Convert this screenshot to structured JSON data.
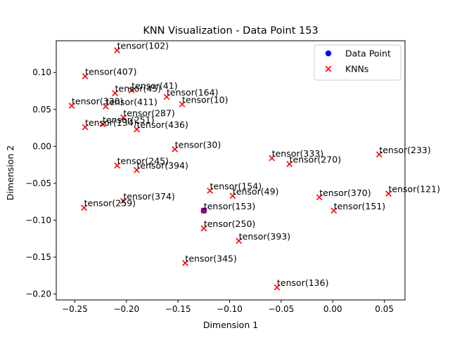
{
  "chart_data": {
    "type": "scatter",
    "title": "KNN Visualization - Data Point 153",
    "xlabel": "Dimension 1",
    "ylabel": "Dimension 2",
    "xlim": [
      -0.268,
      0.07
    ],
    "ylim": [
      -0.208,
      0.143
    ],
    "xticks": [
      -0.25,
      -0.2,
      -0.15,
      -0.1,
      -0.05,
      0.0,
      0.05
    ],
    "xtick_labels": [
      "−0.25",
      "−0.20",
      "−0.15",
      "−0.10",
      "−0.05",
      "0.00",
      "0.05"
    ],
    "yticks": [
      -0.2,
      -0.15,
      -0.1,
      -0.05,
      0.0,
      0.05,
      0.1
    ],
    "ytick_labels": [
      "−0.20",
      "−0.15",
      "−0.10",
      "−0.05",
      "0.00",
      "0.05",
      "0.10"
    ],
    "grid": false,
    "legend_position": "top-right",
    "colors": {
      "data_point": "#0000ff",
      "knn": "#ff0000"
    },
    "series": [
      {
        "name": "Data Point",
        "marker": "circle",
        "points": [
          {
            "x": -0.125,
            "y": -0.087,
            "label": "tensor(153)"
          }
        ]
      },
      {
        "name": "KNNs",
        "marker": "x",
        "points": [
          {
            "x": -0.209,
            "y": 0.13,
            "label": "tensor(102)"
          },
          {
            "x": -0.24,
            "y": 0.095,
            "label": "tensor(407)"
          },
          {
            "x": -0.195,
            "y": 0.076,
            "label": "tensor(41)"
          },
          {
            "x": -0.211,
            "y": 0.072,
            "label": "tensor(45)"
          },
          {
            "x": -0.161,
            "y": 0.067,
            "label": "tensor(164)"
          },
          {
            "x": -0.146,
            "y": 0.057,
            "label": "tensor(10)"
          },
          {
            "x": -0.253,
            "y": 0.055,
            "label": "tensor(330)"
          },
          {
            "x": -0.22,
            "y": 0.054,
            "label": "tensor(411)"
          },
          {
            "x": -0.203,
            "y": 0.039,
            "label": "tensor(287)"
          },
          {
            "x": -0.223,
            "y": 0.03,
            "label": "tensor(251)"
          },
          {
            "x": -0.24,
            "y": 0.026,
            "label": "tensor(134)"
          },
          {
            "x": -0.19,
            "y": 0.023,
            "label": "tensor(436)"
          },
          {
            "x": -0.153,
            "y": -0.004,
            "label": "tensor(30)"
          },
          {
            "x": -0.209,
            "y": -0.026,
            "label": "tensor(245)"
          },
          {
            "x": -0.19,
            "y": -0.032,
            "label": "tensor(394)"
          },
          {
            "x": -0.059,
            "y": -0.016,
            "label": "tensor(333)"
          },
          {
            "x": -0.042,
            "y": -0.024,
            "label": "tensor(270)"
          },
          {
            "x": 0.045,
            "y": -0.011,
            "label": "tensor(233)"
          },
          {
            "x": -0.119,
            "y": -0.06,
            "label": "tensor(154)"
          },
          {
            "x": -0.097,
            "y": -0.067,
            "label": "tensor(49)"
          },
          {
            "x": -0.013,
            "y": -0.069,
            "label": "tensor(370)"
          },
          {
            "x": 0.054,
            "y": -0.064,
            "label": "tensor(121)"
          },
          {
            "x": -0.203,
            "y": -0.074,
            "label": "tensor(374)"
          },
          {
            "x": -0.241,
            "y": -0.083,
            "label": "tensor(259)"
          },
          {
            "x": 0.001,
            "y": -0.087,
            "label": "tensor(151)"
          },
          {
            "x": -0.125,
            "y": -0.111,
            "label": "tensor(250)"
          },
          {
            "x": -0.091,
            "y": -0.128,
            "label": "tensor(393)"
          },
          {
            "x": -0.143,
            "y": -0.158,
            "label": "tensor(345)"
          },
          {
            "x": -0.054,
            "y": -0.191,
            "label": "tensor(136)"
          }
        ]
      }
    ]
  }
}
